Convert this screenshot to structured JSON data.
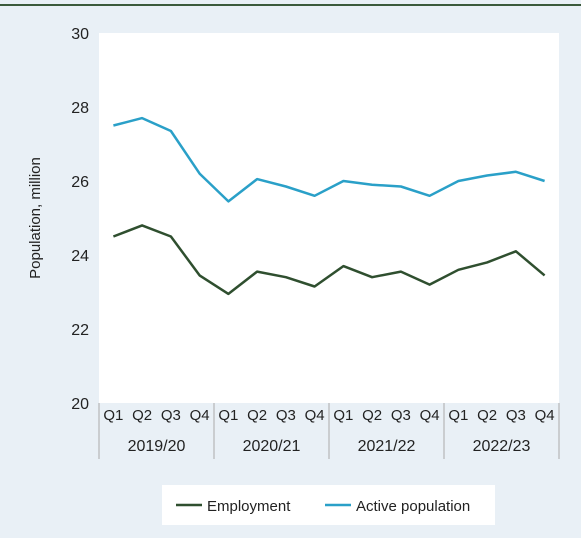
{
  "chart_data": {
    "type": "line",
    "ylabel": "Population, million",
    "ylim": [
      20,
      30
    ],
    "yticks": [
      20,
      22,
      24,
      26,
      28,
      30
    ],
    "quarters": [
      "Q1",
      "Q2",
      "Q3",
      "Q4",
      "Q1",
      "Q2",
      "Q3",
      "Q4",
      "Q1",
      "Q2",
      "Q3",
      "Q4",
      "Q1",
      "Q2",
      "Q3",
      "Q4"
    ],
    "years": [
      "2019/20",
      "2020/21",
      "2021/22",
      "2022/23"
    ],
    "series": [
      {
        "name": "Employment",
        "color": "#2f4f2f",
        "values": [
          24.5,
          24.8,
          24.5,
          23.45,
          22.95,
          23.55,
          23.4,
          23.15,
          23.7,
          23.4,
          23.55,
          23.2,
          23.6,
          23.8,
          24.1,
          23.45
        ]
      },
      {
        "name": "Active population",
        "color": "#2aa0c8",
        "values": [
          27.5,
          27.7,
          27.35,
          26.2,
          25.45,
          26.05,
          25.85,
          25.6,
          26.0,
          25.9,
          25.85,
          25.6,
          26.0,
          26.15,
          26.25,
          26.0
        ]
      }
    ],
    "grid": false,
    "legend_position": "bottom"
  }
}
